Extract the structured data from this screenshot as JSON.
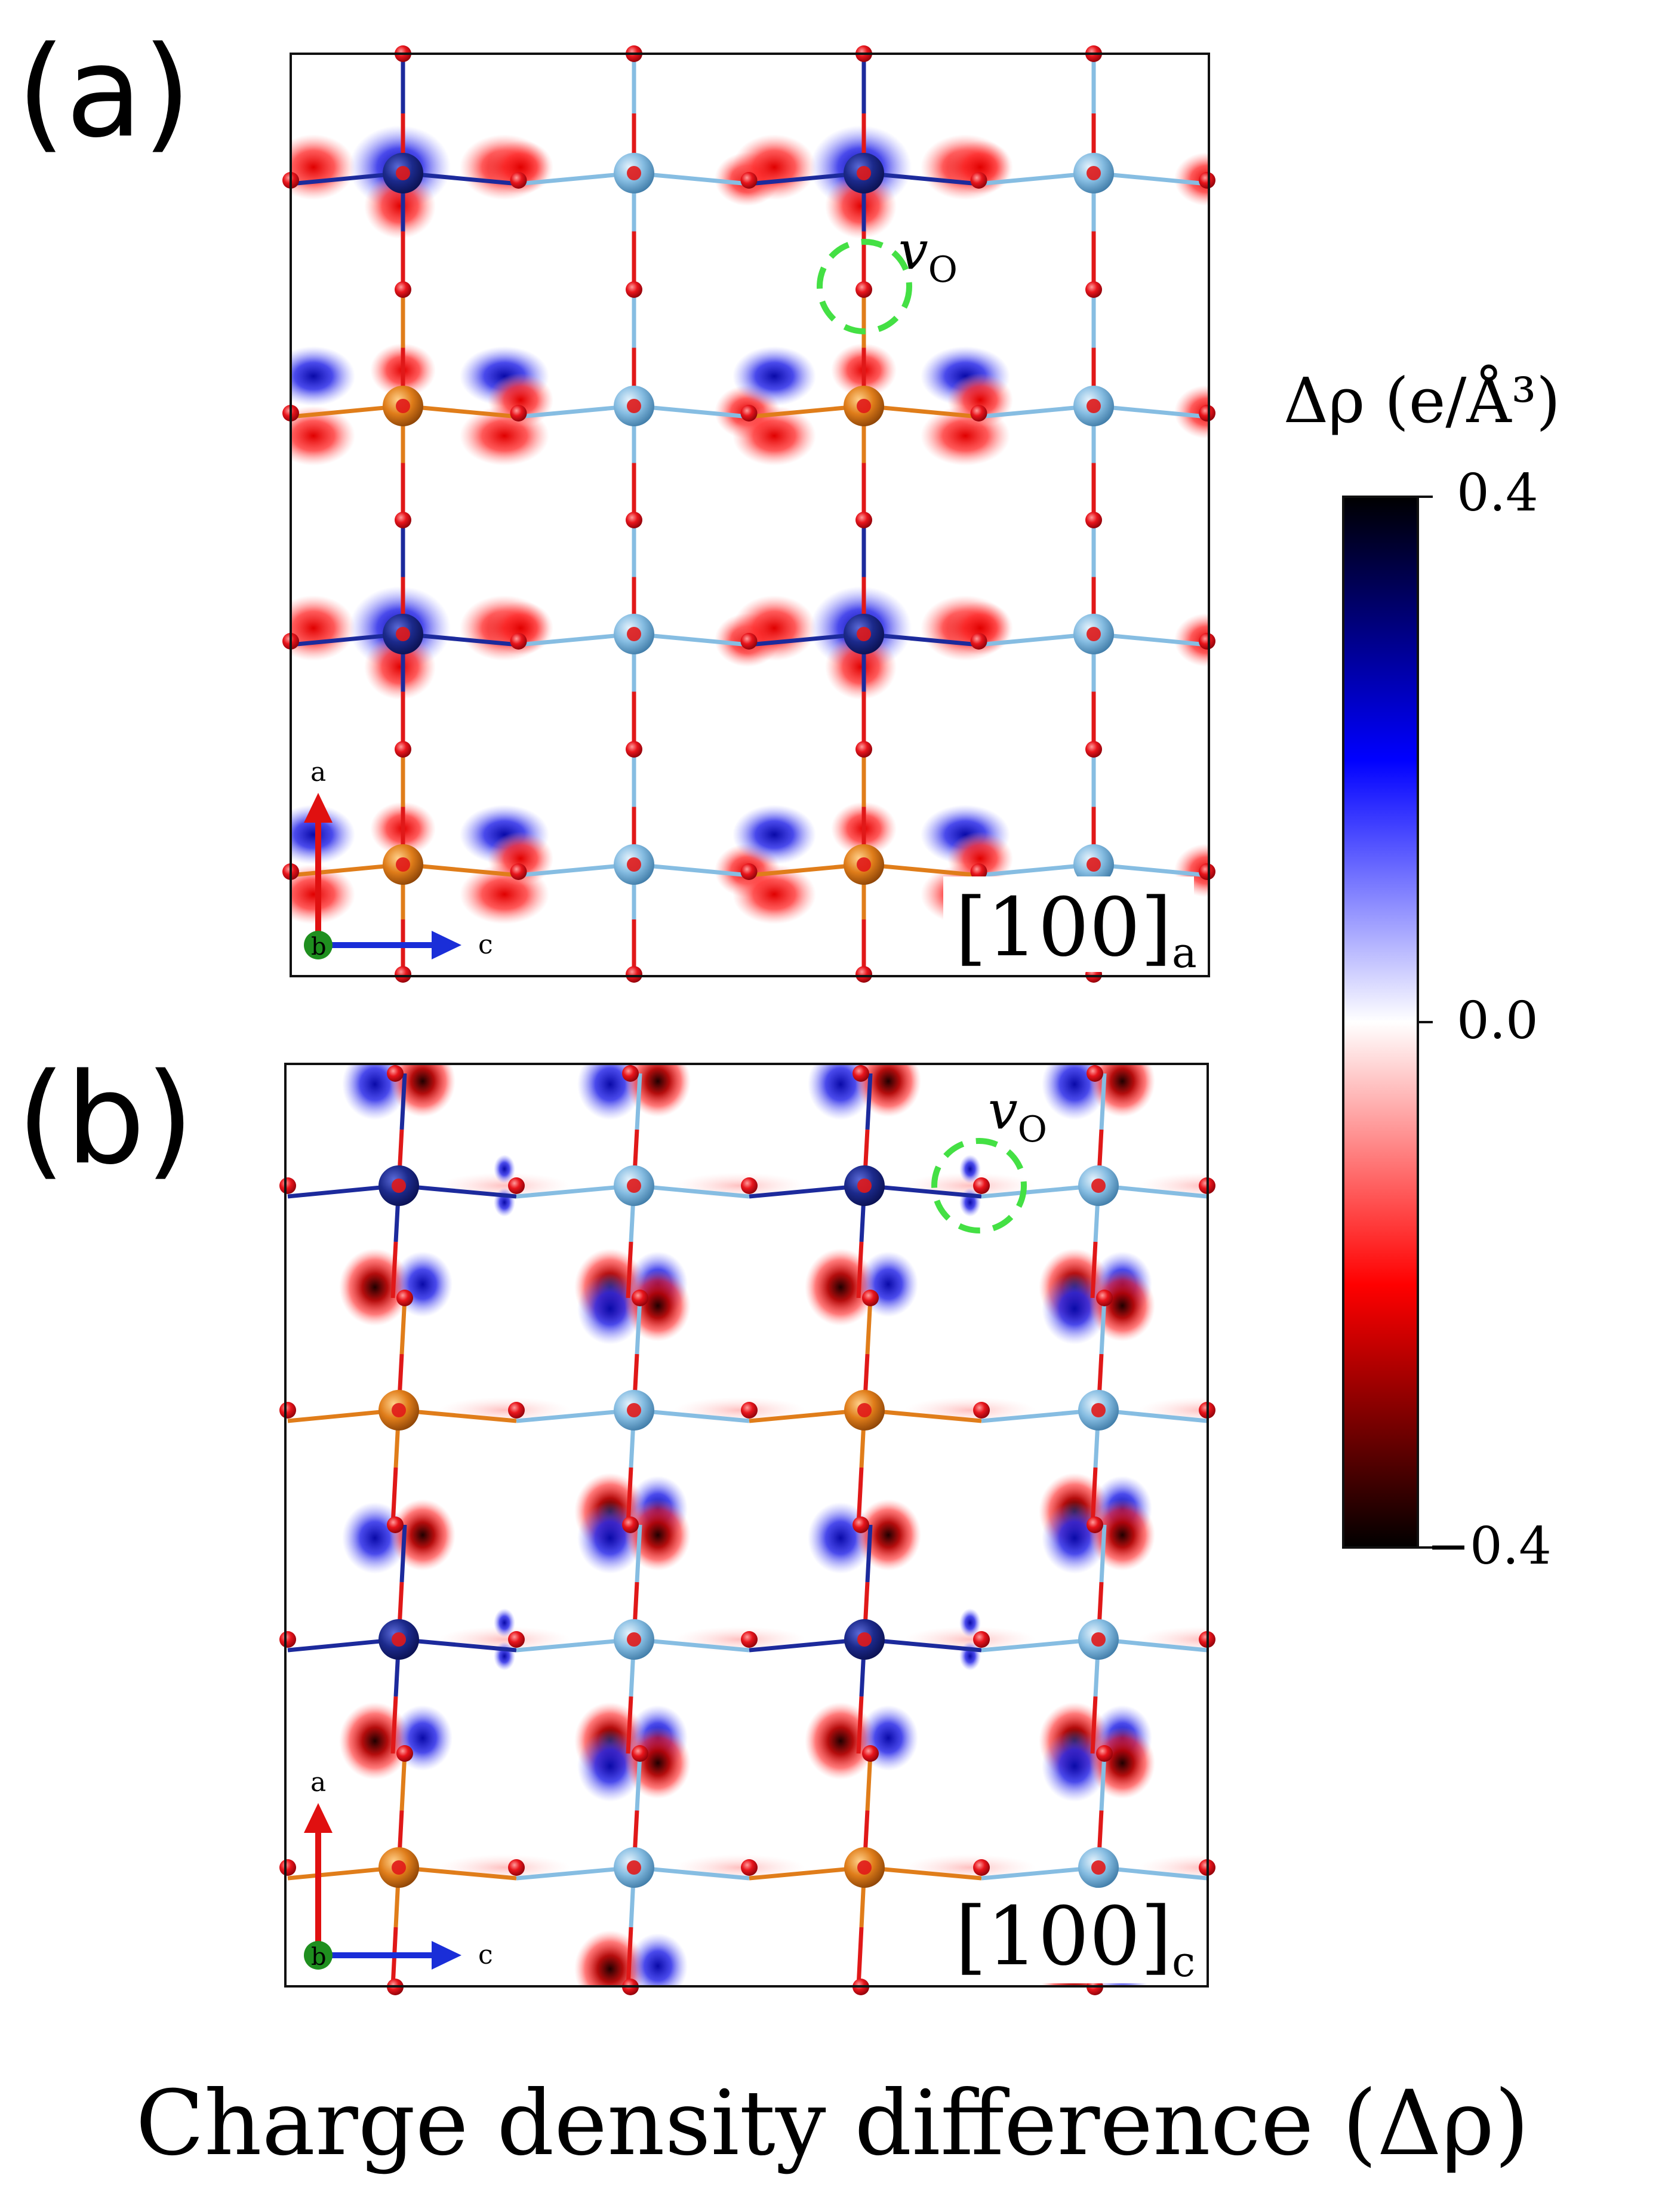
{
  "panels": [
    {
      "label": "(a)",
      "direction": "[100]",
      "subscript": "a",
      "vacancy_main": "v",
      "vacancy_sub": "O"
    },
    {
      "label": "(b)",
      "direction": "[100]",
      "subscript": "c",
      "vacancy_main": "v",
      "vacancy_sub": "O"
    }
  ],
  "axes": {
    "a": "a",
    "b": "b",
    "c": "c"
  },
  "colorbar": {
    "title": "Δρ (e/Å³)",
    "ticks": [
      {
        "label": "0.4",
        "value": 0.4
      },
      {
        "label": "0.0",
        "value": 0.0
      },
      {
        "label": "−0.4",
        "value": -0.4
      }
    ],
    "colors": [
      "#000000",
      "#0000ff",
      "#ffffff",
      "#ff0000",
      "#000000"
    ]
  },
  "caption": "Charge density difference (Δρ)",
  "atom_colors": {
    "oxygen": "#e8151c",
    "metal_dark_blue": "#1c2a8c",
    "metal_light_blue": "#7fb6dc",
    "metal_orange": "#e07d1a",
    "vacancy_ring": "#44e044",
    "b_axis": "#1f8f1f",
    "a_axis": "#e01010",
    "c_axis": "#1a2ed8"
  }
}
